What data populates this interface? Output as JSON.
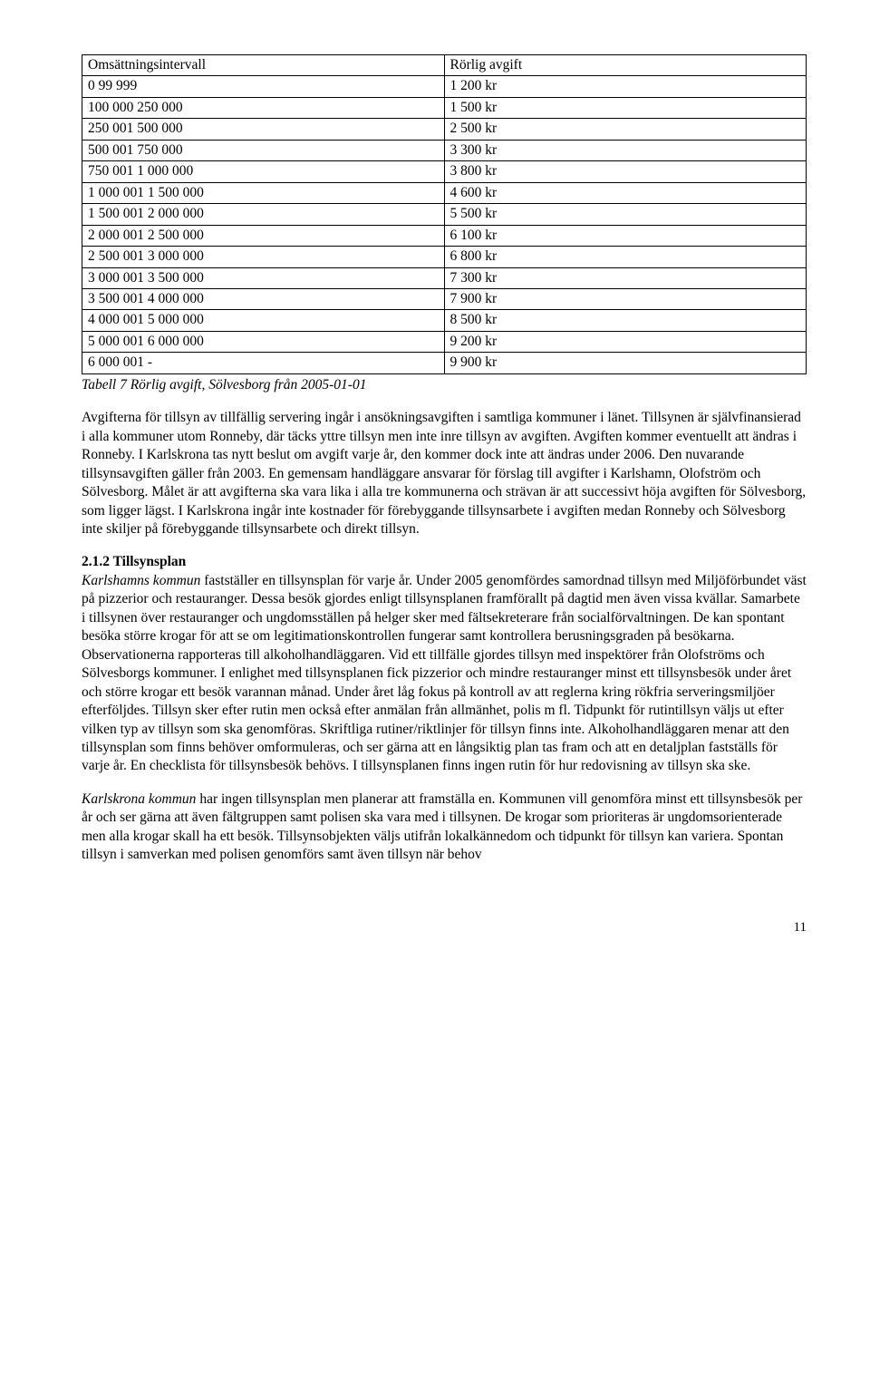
{
  "table": {
    "columns": [
      "Omsättningsintervall",
      "Rörlig avgift"
    ],
    "rows": [
      [
        "0 99 999",
        "1 200 kr"
      ],
      [
        "100 000 250 000",
        "1 500 kr"
      ],
      [
        "250 001 500 000",
        "2 500 kr"
      ],
      [
        "500 001 750 000",
        "3 300 kr"
      ],
      [
        "750 001 1 000 000",
        "3 800 kr"
      ],
      [
        "1 000 001 1 500 000",
        "4 600 kr"
      ],
      [
        "1 500 001 2 000 000",
        "5 500 kr"
      ],
      [
        "2 000 001 2 500 000",
        "6 100 kr"
      ],
      [
        "2 500 001 3 000 000",
        "6 800 kr"
      ],
      [
        "3 000 001 3 500 000",
        "7 300 kr"
      ],
      [
        "3 500 001 4 000 000",
        "7 900 kr"
      ],
      [
        "4 000 001 5 000 000",
        "8 500 kr"
      ],
      [
        "5 000 001 6 000 000",
        "9 200 kr"
      ],
      [
        "6 000 001 -",
        "9 900 kr"
      ]
    ],
    "caption": "Tabell 7 Rörlig avgift, Sölvesborg från 2005-01-01"
  },
  "para1": "Avgifterna för tillsyn av tillfällig servering ingår i ansökningsavgiften i samtliga kommuner i länet. Tillsynen är självfinansierad i alla kommuner utom Ronneby, där täcks yttre tillsyn men inte inre tillsyn av avgiften. Avgiften kommer eventuellt att ändras i Ronneby. I Karlskrona tas nytt beslut om avgift varje år, den kommer dock inte att ändras under 2006. Den nuvarande tillsynsavgiften gäller från 2003. En gemensam handläggare ansvarar för förslag till avgifter i Karlshamn, Olofström och Sölvesborg. Målet är att avgifterna ska vara lika i alla tre kommunerna och strävan är att successivt höja avgiften för Sölvesborg, som ligger lägst. I Karlskrona ingår inte kostnader för förebyggande tillsynsarbete i avgiften medan Ronneby och Sölvesborg inte skiljer på förebyggande tillsynsarbete och direkt tillsyn.",
  "section": {
    "heading": "2.1.2 Tillsynsplan",
    "lead_italic": "Karlshamns kommun",
    "p2_rest": " fastställer en tillsynsplan för varje år. Under 2005 genomfördes samordnad tillsyn med Miljöförbundet väst på pizzerior och restauranger. Dessa besök gjordes enligt tillsynsplanen framförallt på dagtid men även vissa kvällar. Samarbete i tillsynen över restauranger och ungdomsställen på helger sker med fältsekreterare från socialförvaltningen. De kan spontant besöka större krogar för att se om legitimationskontrollen fungerar samt kontrollera berusningsgraden på besökarna. Observationerna rapporteras till alkoholhandläggaren. Vid ett tillfälle gjordes tillsyn med inspektörer från Olofströms och Sölvesborgs kommuner. I enlighet med tillsynsplanen fick pizzerior och mindre restauranger minst ett tillsynsbesök under året och större krogar ett besök varannan månad. Under året låg fokus på kontroll av att reglerna kring rökfria serveringsmiljöer efterföljdes. Tillsyn sker efter rutin men också efter anmälan från allmänhet, polis m fl. Tidpunkt för rutintillsyn väljs ut efter vilken typ av tillsyn som ska genomföras. Skriftliga rutiner/riktlinjer för tillsyn finns inte. Alkoholhandläggaren menar att den tillsynsplan som finns behöver omformuleras, och ser gärna att en långsiktig plan tas fram och att en detaljplan fastställs för varje år.  En checklista för tillsynsbesök behövs. I tillsynsplanen finns ingen rutin för hur redovisning av tillsyn ska ske.",
    "p3_italic": "Karlskrona kommun",
    "p3_rest": " har ingen tillsynsplan men planerar att framställa en. Kommunen vill genomföra minst ett tillsynsbesök per år och ser gärna att även fältgruppen samt polisen ska vara med i tillsynen. De krogar som prioriteras är ungdomsorienterade men alla krogar skall ha ett besök. Tillsynsobjekten väljs utifrån lokalkännedom och tidpunkt för tillsyn kan variera. Spontan tillsyn i samverkan med polisen genomförs samt även tillsyn när behov"
  },
  "pagenum": "11"
}
